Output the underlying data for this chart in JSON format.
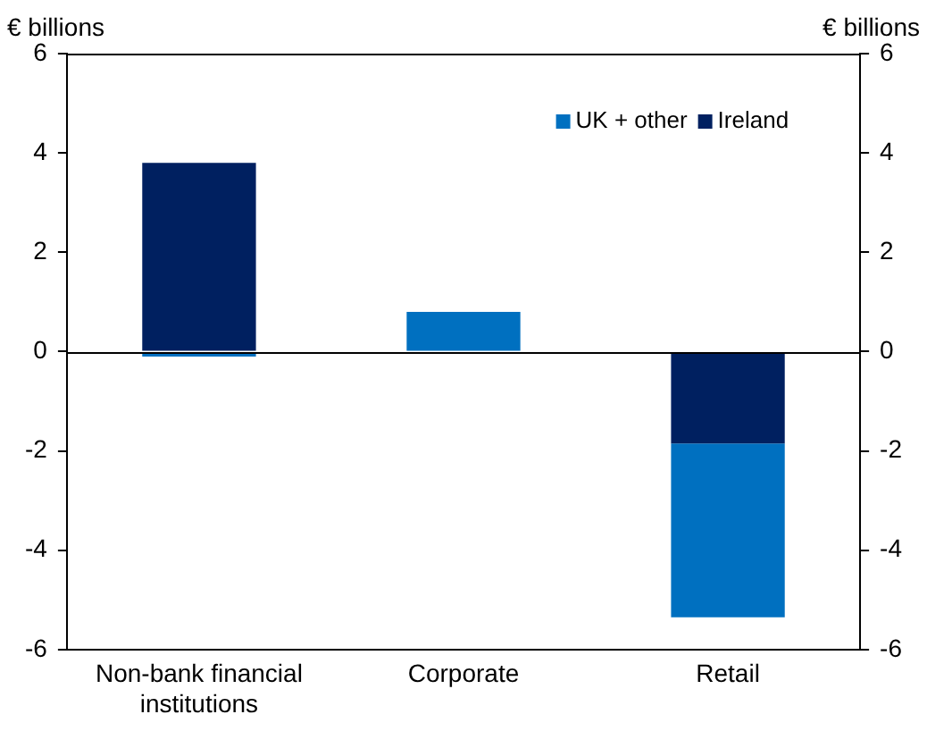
{
  "chart_data": {
    "type": "bar",
    "stacked": true,
    "ylabel": "€ billions",
    "y2label": "€ billions",
    "categories": [
      "Non-bank financial institutions",
      "Corporate",
      "Retail"
    ],
    "series": [
      {
        "name": "Ireland",
        "color": "#002060",
        "values": [
          3.8,
          0,
          -1.85
        ]
      },
      {
        "name": "UK + other",
        "color": "#0070c0",
        "values": [
          -0.1,
          0.8,
          -3.5
        ]
      }
    ],
    "ylim": [
      -6,
      6
    ],
    "yticks": [
      -6,
      -4,
      -2,
      0,
      2,
      4,
      6
    ],
    "y2lim": [
      -6,
      6
    ],
    "y2ticks": [
      -6,
      -4,
      -2,
      0,
      2,
      4,
      6
    ],
    "ref_lines": [
      {
        "axis": "y",
        "value": 0,
        "color": "#000000"
      }
    ],
    "legend": "top right",
    "grid": false
  }
}
